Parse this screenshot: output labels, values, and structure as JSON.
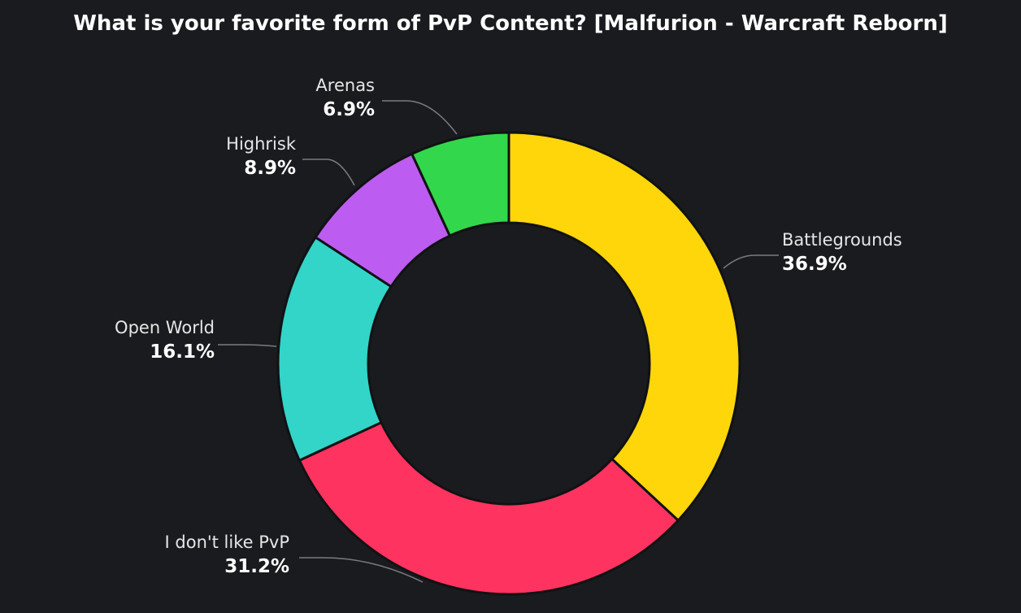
{
  "chart_data": {
    "type": "pie",
    "donut": true,
    "title": "What is your favorite form of PvP Content? [Malfurion - Warcraft Reborn]",
    "slices": [
      {
        "label": "Battlegrounds",
        "value": 36.9,
        "display": "36.9%",
        "color": "#ffd60a"
      },
      {
        "label": "I don't like PvP",
        "value": 31.2,
        "display": "31.2%",
        "color": "#ff335f"
      },
      {
        "label": "Open World",
        "value": 16.1,
        "display": "16.1%",
        "color": "#32d5c8"
      },
      {
        "label": "Highrisk",
        "value": 8.9,
        "display": "8.9%",
        "color": "#bd5cf0"
      },
      {
        "label": "Arenas",
        "value": 6.9,
        "display": "6.9%",
        "color": "#32d74b"
      }
    ],
    "background": "#1a1b1f"
  }
}
